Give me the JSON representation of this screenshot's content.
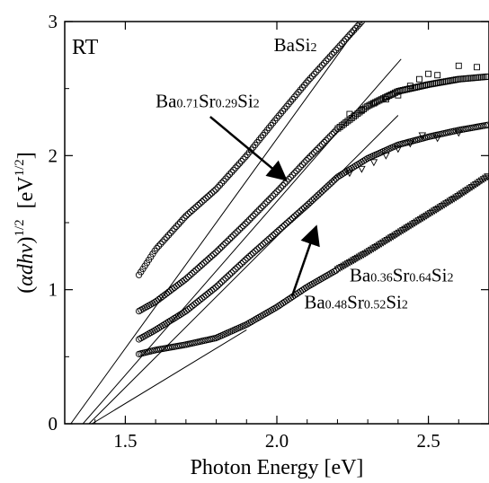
{
  "chart_data": {
    "type": "scatter",
    "annotation": "RT",
    "xlabel": "Photon Energy [eV]",
    "ylabel": {
      "open": "(",
      "expr": "αdhν",
      "close": ")",
      "exp": "1/2",
      "unit_open": "[eV",
      "unit_exp": "1/2",
      "unit_close": "]"
    },
    "xlim": [
      1.3,
      2.7
    ],
    "ylim": [
      0,
      3
    ],
    "xticks": [
      1.5,
      2.0,
      2.5
    ],
    "xtick_labels": [
      "1.5",
      "2.0",
      "2.5"
    ],
    "yticks": [
      0,
      1,
      2,
      3
    ],
    "ytick_labels": [
      "0",
      "1",
      "2",
      "3"
    ],
    "series": [
      {
        "name": "BaSi2",
        "label_parts": [
          [
            "Ba",
            ""
          ],
          [
            "Si",
            "2"
          ]
        ],
        "marker": "circle",
        "curve": [
          [
            1.545,
            1.11
          ],
          [
            1.6,
            1.3
          ],
          [
            1.7,
            1.55
          ],
          [
            1.8,
            1.75
          ],
          [
            1.9,
            2.0
          ],
          [
            2.0,
            2.28
          ],
          [
            2.1,
            2.55
          ],
          [
            2.2,
            2.8
          ],
          [
            2.28,
            3.0
          ]
        ],
        "fit_line": [
          [
            1.32,
            0
          ],
          [
            2.28,
            3.0
          ]
        ]
      },
      {
        "name": "Ba0.71Sr0.29Si2",
        "label_parts": [
          [
            "Ba",
            "0.71"
          ],
          [
            "Sr",
            "0.29"
          ],
          [
            "Si",
            "2"
          ]
        ],
        "marker": "square",
        "curve": [
          [
            1.545,
            0.84
          ],
          [
            1.6,
            0.91
          ],
          [
            1.7,
            1.08
          ],
          [
            1.8,
            1.28
          ],
          [
            1.9,
            1.5
          ],
          [
            2.0,
            1.73
          ],
          [
            2.1,
            1.97
          ],
          [
            2.2,
            2.2
          ],
          [
            2.3,
            2.37
          ],
          [
            2.4,
            2.48
          ],
          [
            2.5,
            2.53
          ],
          [
            2.6,
            2.57
          ],
          [
            2.7,
            2.59
          ]
        ],
        "scatter_extra": [
          [
            2.24,
            2.31
          ],
          [
            2.28,
            2.34
          ],
          [
            2.32,
            2.39
          ],
          [
            2.36,
            2.42
          ],
          [
            2.4,
            2.45
          ],
          [
            2.44,
            2.52
          ],
          [
            2.47,
            2.57
          ],
          [
            2.5,
            2.61
          ],
          [
            2.53,
            2.6
          ],
          [
            2.6,
            2.67
          ],
          [
            2.66,
            2.66
          ]
        ],
        "fit_line": [
          [
            1.36,
            0
          ],
          [
            2.41,
            2.72
          ]
        ]
      },
      {
        "name": "Ba0.48Sr0.52Si2",
        "label_parts": [
          [
            "Ba",
            "0.48"
          ],
          [
            "Sr",
            "0.52"
          ],
          [
            "Si",
            "2"
          ]
        ],
        "marker": "circle",
        "curve": [
          [
            1.545,
            0.63
          ],
          [
            1.6,
            0.7
          ],
          [
            1.7,
            0.84
          ],
          [
            1.8,
            1.02
          ],
          [
            1.9,
            1.23
          ],
          [
            2.0,
            1.43
          ],
          [
            2.1,
            1.63
          ],
          [
            2.2,
            1.84
          ],
          [
            2.3,
            1.98
          ],
          [
            2.4,
            2.08
          ],
          [
            2.5,
            2.14
          ],
          [
            2.6,
            2.19
          ],
          [
            2.7,
            2.23
          ]
        ],
        "fit_line": [
          [
            1.38,
            0
          ],
          [
            2.4,
            2.3
          ]
        ]
      },
      {
        "name": "Ba0.36Sr0.64Si2",
        "label_parts": [
          [
            "Ba",
            "0.36"
          ],
          [
            "Sr",
            "0.64"
          ],
          [
            "Si",
            "2"
          ]
        ],
        "marker": "triangle-down",
        "curve": [
          [
            1.545,
            0.52
          ],
          [
            1.6,
            0.55
          ],
          [
            1.7,
            0.59
          ],
          [
            1.8,
            0.64
          ],
          [
            1.9,
            0.74
          ],
          [
            2.0,
            0.87
          ],
          [
            2.1,
            1.02
          ],
          [
            2.2,
            1.15
          ],
          [
            2.3,
            1.28
          ],
          [
            2.4,
            1.42
          ],
          [
            2.5,
            1.56
          ],
          [
            2.6,
            1.7
          ],
          [
            2.7,
            1.85
          ]
        ],
        "scatter_extra": [
          [
            2.24,
            1.87
          ],
          [
            2.28,
            1.9
          ],
          [
            2.32,
            1.95
          ],
          [
            2.36,
            2.0
          ],
          [
            2.4,
            2.05
          ],
          [
            2.44,
            2.09
          ],
          [
            2.48,
            2.15
          ],
          [
            2.53,
            2.13
          ],
          [
            2.6,
            2.17
          ]
        ],
        "fit_line": [
          [
            1.39,
            0
          ],
          [
            1.9,
            0.7
          ]
        ]
      }
    ],
    "labels": [
      {
        "series": 0,
        "at": [
          1.99,
          2.78
        ],
        "anchor": "start"
      },
      {
        "series": 1,
        "at": [
          1.6,
          2.36
        ],
        "anchor": "start"
      },
      {
        "series": 2,
        "at": [
          2.09,
          0.86
        ],
        "anchor": "start"
      },
      {
        "series": 3,
        "at": [
          2.24,
          1.06
        ],
        "anchor": "start"
      }
    ],
    "arrows": [
      {
        "from": [
          1.78,
          2.29
        ],
        "to": [
          2.03,
          1.82
        ]
      },
      {
        "from": [
          2.05,
          0.95
        ],
        "to": [
          2.13,
          1.47
        ]
      }
    ],
    "grid": false,
    "legend": "none"
  }
}
